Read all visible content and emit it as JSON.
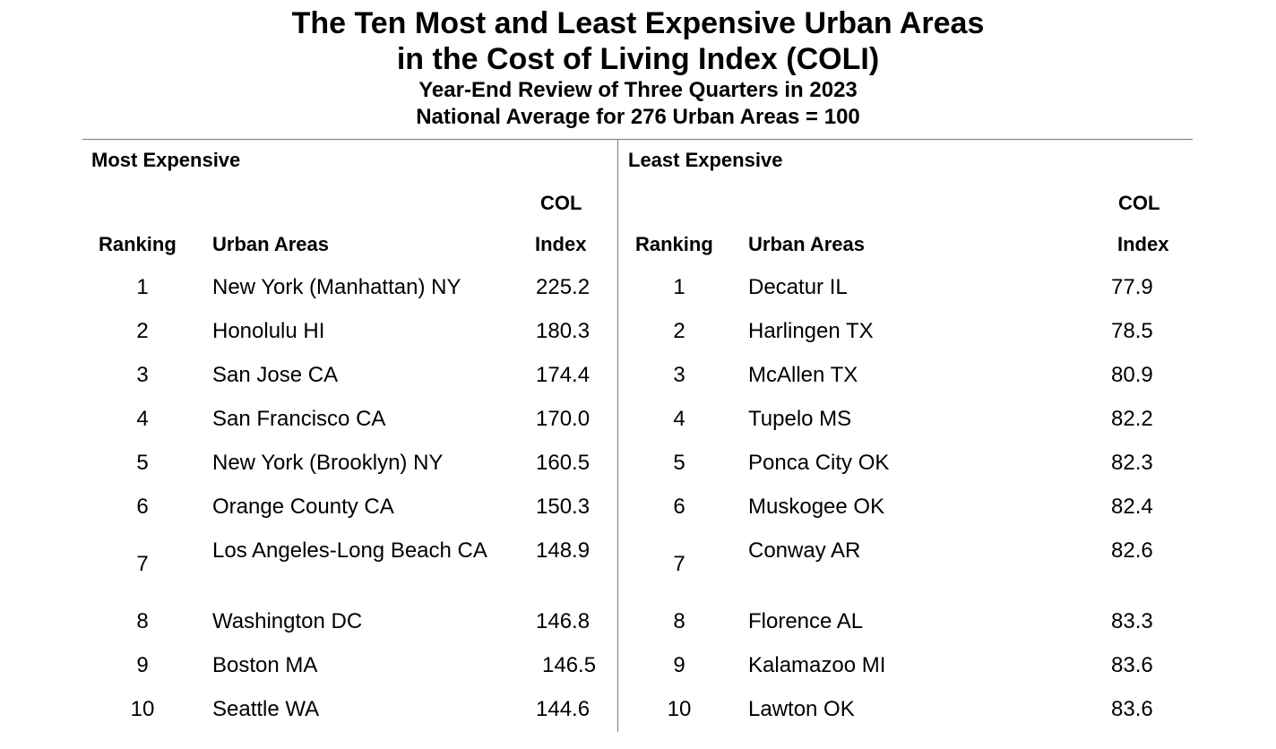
{
  "title": {
    "line1": "The Ten Most and Least Expensive Urban Areas",
    "line2": "in the Cost of Living Index (COLI)",
    "subtitle1": "Year-End Review of Three Quarters in 2023",
    "subtitle2": "National Average for 276 Urban Areas = 100"
  },
  "most": {
    "heading": "Most Expensive",
    "headers": {
      "ranking": "Ranking",
      "areas": "Urban Areas",
      "col_top": "COL",
      "col_bottom": "Index"
    },
    "rows": [
      {
        "rank": "1",
        "area": "New York (Manhattan) NY",
        "index": "225.2"
      },
      {
        "rank": "2",
        "area": "Honolulu HI",
        "index": "180.3"
      },
      {
        "rank": "3",
        "area": "San Jose CA",
        "index": "174.4"
      },
      {
        "rank": "4",
        "area": "San Francisco CA",
        "index": "170.0"
      },
      {
        "rank": "5",
        "area": "New York (Brooklyn) NY",
        "index": "160.5"
      },
      {
        "rank": "6",
        "area": "Orange County CA",
        "index": "150.3"
      },
      {
        "rank": "7",
        "area": "Los Angeles-Long Beach CA",
        "index": "148.9"
      },
      {
        "rank": "8",
        "area": "Washington DC",
        "index": "146.8"
      },
      {
        "rank": "9",
        "area": "Boston MA",
        "index": "146.5"
      },
      {
        "rank": "10",
        "area": "Seattle WA",
        "index": "144.6"
      }
    ]
  },
  "least": {
    "heading": "Least Expensive",
    "headers": {
      "ranking": "Ranking",
      "areas": "Urban Areas",
      "col_top": "COL",
      "col_bottom": "Index"
    },
    "rows": [
      {
        "rank": "1",
        "area": "Decatur IL",
        "index": "77.9"
      },
      {
        "rank": "2",
        "area": "Harlingen TX",
        "index": "78.5"
      },
      {
        "rank": "3",
        "area": "McAllen TX",
        "index": "80.9"
      },
      {
        "rank": "4",
        "area": "Tupelo MS",
        "index": "82.2"
      },
      {
        "rank": "5",
        "area": "Ponca City OK",
        "index": "82.3"
      },
      {
        "rank": "6",
        "area": "Muskogee OK",
        "index": "82.4"
      },
      {
        "rank": "7",
        "area": "Conway AR",
        "index": "82.6"
      },
      {
        "rank": "8",
        "area": "Florence AL",
        "index": "83.3"
      },
      {
        "rank": "9",
        "area": "Kalamazoo MI",
        "index": "83.6"
      },
      {
        "rank": "10",
        "area": "Lawton OK",
        "index": "83.6"
      }
    ]
  }
}
